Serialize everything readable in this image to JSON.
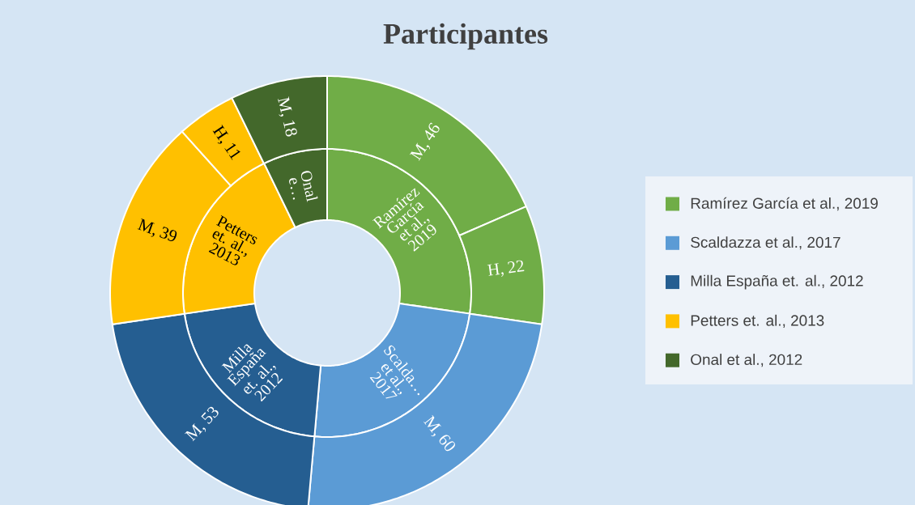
{
  "chart_data": [
    {
      "type": "donut",
      "title": "Participantes",
      "categories": [
        "Ramírez García et al., 2019",
        "Scaldazza et al., 2017",
        "Milla España et. al., 2012",
        "Petters et. al., 2013",
        "Onal et al., 2012"
      ],
      "values": [
        27.3,
        24.1,
        21.3,
        20.1,
        7.2
      ],
      "colors": [
        "#70ad47",
        "#5b9bd5",
        "#255e91",
        "#ffc000",
        "#43682b"
      ],
      "annotations": [
        "Ramírez García et al., 2019",
        "Scalda… et al., 2017",
        "Milla España et. al., 2012",
        "Petters et. al., 2013",
        "Onal e…"
      ],
      "legend": "right"
    },
    {
      "type": "donut",
      "categories": [
        null,
        null,
        null,
        null,
        null,
        null,
        null
      ],
      "values": [
        46,
        22,
        60,
        53,
        39,
        11,
        18
      ],
      "colors": [
        "#70ad47",
        "#70ad47",
        "#5b9bd5",
        "#255e91",
        "#ffc000",
        "#ffc000",
        "#43682b"
      ],
      "value_labels": [
        "M, 46",
        "H, 22",
        "M, 60",
        "M, 53",
        "M, 39",
        "H, 11",
        "M, 18"
      ]
    }
  ]
}
